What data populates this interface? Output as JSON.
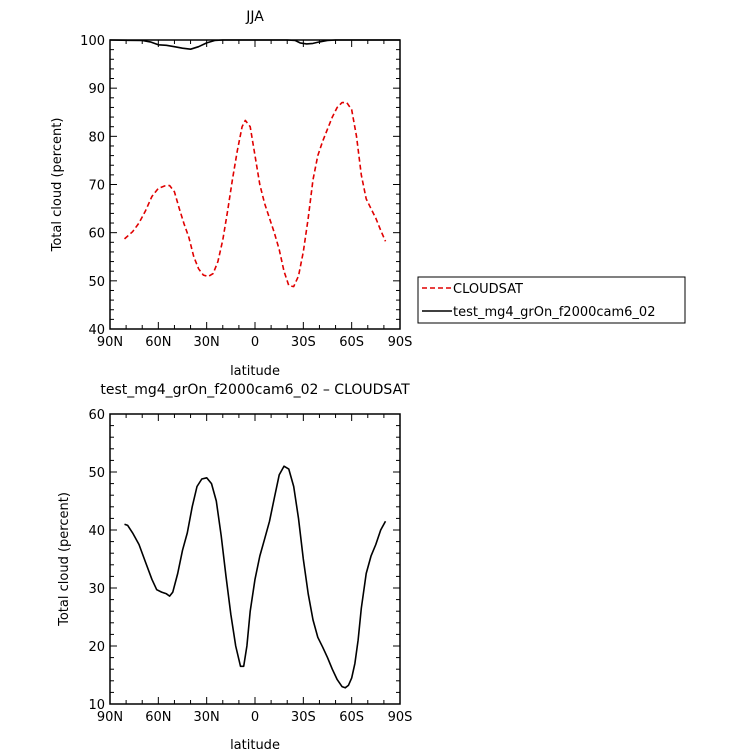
{
  "chart_data": [
    {
      "type": "line",
      "title": "JJA",
      "xlabel": "latitude",
      "ylabel": "Total cloud (percent)",
      "xlim": [
        -90,
        90
      ],
      "ylim": [
        40,
        100
      ],
      "xticks": [
        -90,
        -60,
        -30,
        0,
        30,
        60,
        90
      ],
      "xtick_labels": [
        "90N",
        "60N",
        "30N",
        "0",
        "30S",
        "60S",
        "90S"
      ],
      "yticks": [
        40,
        50,
        60,
        70,
        80,
        90,
        100
      ],
      "ytick_labels": [
        "40",
        "50",
        "60",
        "70",
        "80",
        "90",
        "100"
      ],
      "legend_position": "right",
      "series": [
        {
          "name": "CLOUDSAT",
          "color": "#e00000",
          "dash": true,
          "x": [
            -81,
            -76,
            -72,
            -68,
            -64,
            -60,
            -56,
            -53,
            -50,
            -47,
            -44,
            -41,
            -38,
            -35,
            -32,
            -29,
            -26,
            -23,
            -20,
            -17,
            -14,
            -11,
            -8,
            -6,
            -3,
            0,
            3,
            6,
            9,
            12,
            15,
            18,
            21,
            24,
            27,
            30,
            33,
            36,
            39,
            42,
            45,
            48,
            51,
            54,
            57,
            60,
            63,
            66,
            69,
            72,
            75,
            78,
            81
          ],
          "y": [
            58.7,
            60.2,
            62.0,
            64.5,
            67.5,
            69.2,
            69.7,
            69.8,
            68.5,
            65.0,
            61.8,
            59.0,
            55.0,
            52.5,
            51.2,
            50.9,
            51.5,
            54.0,
            58.5,
            64.5,
            71.0,
            77.0,
            82.0,
            83.3,
            82.0,
            76.0,
            70.0,
            66.0,
            63.0,
            60.0,
            56.5,
            52.0,
            49.0,
            48.8,
            51.0,
            56.0,
            63.0,
            71.0,
            76.0,
            79.0,
            81.5,
            84.0,
            86.0,
            87.0,
            87.0,
            85.5,
            80.0,
            72.0,
            67.0,
            65.0,
            63.0,
            60.5,
            58.2
          ]
        },
        {
          "name": "test_mg4_grOn_f2000cam6_02",
          "color": "#000000",
          "dash": false,
          "x": [
            -90,
            -70,
            -65,
            -60,
            -55,
            -50,
            -45,
            -40,
            -35,
            -30,
            -25,
            -20,
            -10,
            0,
            10,
            20,
            25,
            28,
            32,
            36,
            40,
            45,
            50,
            60,
            90
          ],
          "y": [
            100,
            99.9,
            99.6,
            99.0,
            98.9,
            98.6,
            98.3,
            98.1,
            98.6,
            99.4,
            99.9,
            100,
            100,
            100,
            100,
            100,
            99.9,
            99.4,
            99.2,
            99.3,
            99.6,
            99.9,
            100,
            100,
            100
          ]
        }
      ]
    },
    {
      "type": "line",
      "title": "test_mg4_grOn_f2000cam6_02 – CLOUDSAT",
      "xlabel": "latitude",
      "ylabel": "Total cloud (percent)",
      "xlim": [
        -90,
        90
      ],
      "ylim": [
        10,
        60
      ],
      "xticks": [
        -90,
        -60,
        -30,
        0,
        30,
        60,
        90
      ],
      "xtick_labels": [
        "90N",
        "60N",
        "30N",
        "0",
        "30S",
        "60S",
        "90S"
      ],
      "yticks": [
        10,
        20,
        30,
        40,
        50,
        60
      ],
      "ytick_labels": [
        "10",
        "20",
        "30",
        "40",
        "50",
        "60"
      ],
      "series": [
        {
          "color": "#000000",
          "dash": false,
          "x": [
            -81,
            -79,
            -76,
            -72,
            -68,
            -64,
            -61,
            -58,
            -55,
            -53,
            -51,
            -48,
            -45,
            -42,
            -39,
            -36,
            -33,
            -30,
            -27,
            -24,
            -21,
            -18,
            -15,
            -12,
            -9,
            -7,
            -5,
            -3,
            0,
            3,
            6,
            9,
            12,
            15,
            18,
            21,
            24,
            27,
            30,
            33,
            36,
            39,
            42,
            45,
            48,
            51,
            54,
            56,
            58,
            60,
            62,
            64,
            66,
            69,
            72,
            75,
            78,
            81
          ],
          "y": [
            41.0,
            40.8,
            39.5,
            37.5,
            34.5,
            31.5,
            29.7,
            29.3,
            29.0,
            28.6,
            29.3,
            32.5,
            36.5,
            39.5,
            44.0,
            47.5,
            48.8,
            49.0,
            48.0,
            45.0,
            39.0,
            32.0,
            25.5,
            20.0,
            16.5,
            16.5,
            20.0,
            26.0,
            31.5,
            35.5,
            38.5,
            41.5,
            45.5,
            49.5,
            51.0,
            50.5,
            47.5,
            42.0,
            35.0,
            29.0,
            24.5,
            21.5,
            19.8,
            18.0,
            16.0,
            14.2,
            13.0,
            12.8,
            13.2,
            14.5,
            17.0,
            21.0,
            26.5,
            32.5,
            35.5,
            37.5,
            40.0,
            41.5
          ]
        }
      ]
    }
  ]
}
